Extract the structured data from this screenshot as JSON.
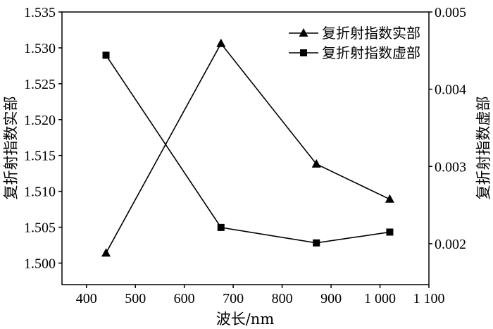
{
  "chart_data": {
    "type": "line",
    "xlabel": "波长/nm",
    "xlim": [
      350,
      1100
    ],
    "x_ticks": [
      400,
      500,
      600,
      700,
      800,
      900,
      1000,
      1100
    ],
    "x_tick_labels": [
      "400",
      "500",
      "600",
      "700",
      "800",
      "900",
      "1 000",
      "1 100"
    ],
    "y_axes": [
      {
        "label": "复折射指数实部",
        "ylim": [
          1.497,
          1.535
        ],
        "ticks": [
          1.5,
          1.505,
          1.51,
          1.515,
          1.52,
          1.525,
          1.53,
          1.535
        ],
        "tick_labels": [
          "1.500",
          "1.505",
          "1.510",
          "1.515",
          "1.520",
          "1.525",
          "1.530",
          "1.535"
        ]
      },
      {
        "label": "复折射指数虚部",
        "ylim": [
          0.00147,
          0.005
        ],
        "ticks": [
          0.002,
          0.003,
          0.004,
          0.005
        ],
        "tick_labels": [
          "0.002",
          "0.003",
          "0.004",
          "0.005"
        ]
      }
    ],
    "grid": false,
    "legend": "top-right",
    "series": [
      {
        "name": "复折射指数实部",
        "y_axis": 0,
        "marker": "triangle",
        "color": "#000000",
        "x": [
          440,
          675,
          870,
          1020
        ],
        "values": [
          1.5014,
          1.5306,
          1.5138,
          1.5089
        ]
      },
      {
        "name": "复折射指数虚部",
        "y_axis": 1,
        "marker": "square",
        "color": "#000000",
        "x": [
          440,
          675,
          870,
          1020
        ],
        "values": [
          0.00444,
          0.00221,
          0.00201,
          0.00215
        ]
      }
    ]
  }
}
